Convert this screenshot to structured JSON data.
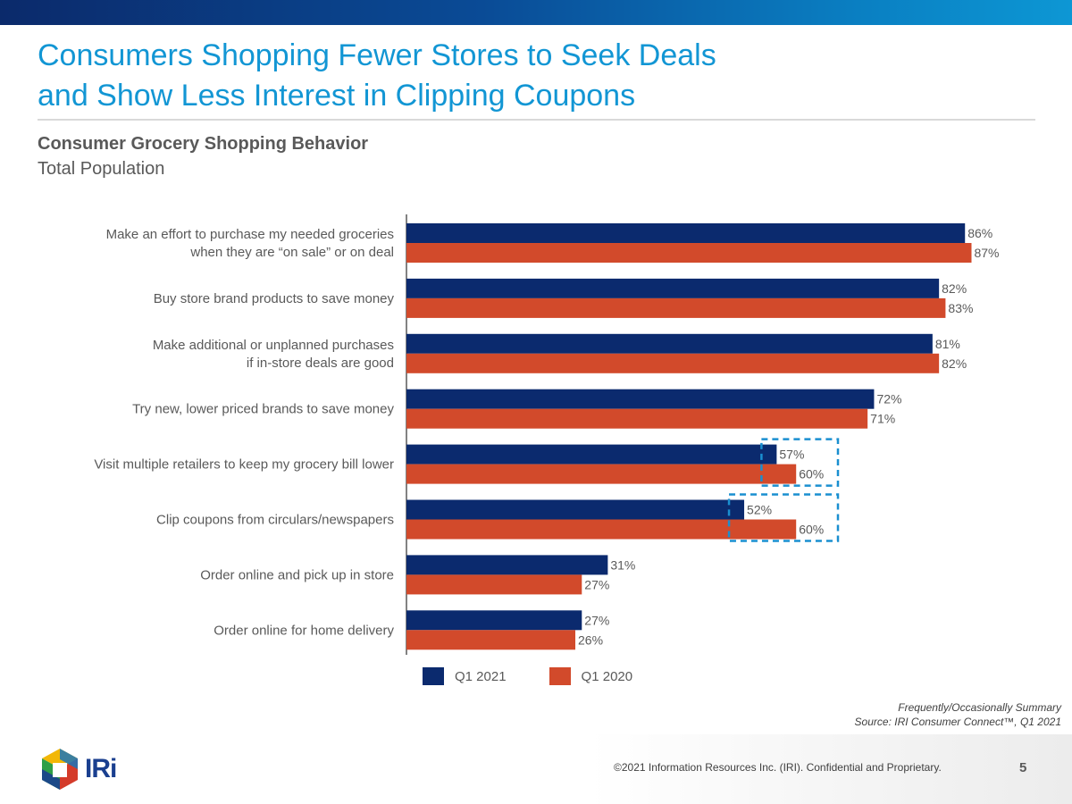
{
  "header": {
    "title_line1": "Consumers Shopping Fewer Stores to Seek Deals",
    "title_line2": "and Show Less Interest in Clipping Coupons",
    "subtitle": "Consumer Grocery Shopping Behavior",
    "subtitle2": "Total Population"
  },
  "colors": {
    "q1_2021": "#0b2a6e",
    "q1_2020": "#d24a2b",
    "title": "#1296d4",
    "highlight": "#1a8fd0"
  },
  "chart_data": {
    "type": "bar",
    "orientation": "horizontal",
    "categories": [
      [
        "Make an effort to purchase my needed groceries",
        "when they are “on sale” or on deal"
      ],
      [
        "Buy store brand products to save money"
      ],
      [
        "Make additional or unplanned purchases",
        "if in-store deals are good"
      ],
      [
        "Try new, lower priced brands to save money"
      ],
      [
        "Visit multiple retailers to keep my grocery bill lower"
      ],
      [
        "Clip coupons from circulars/newspapers"
      ],
      [
        "Order online and pick up in store"
      ],
      [
        "Order online for home delivery"
      ]
    ],
    "series": [
      {
        "name": "Q1 2021",
        "values": [
          86,
          82,
          81,
          72,
          57,
          52,
          31,
          27
        ]
      },
      {
        "name": "Q1 2020",
        "values": [
          87,
          83,
          82,
          71,
          60,
          60,
          27,
          26
        ]
      }
    ],
    "value_suffix": "%",
    "xlim": [
      0,
      100
    ],
    "highlighted_categories": [
      4,
      5
    ],
    "legend_position": "bottom"
  },
  "legend": {
    "items": [
      {
        "label": "Q1 2021"
      },
      {
        "label": "Q1 2020"
      }
    ]
  },
  "notes": {
    "line1": "Frequently/Occasionally Summary",
    "line2": "Source: IRI Consumer Connect™, Q1 2021"
  },
  "footer": {
    "logo_text": "IRi",
    "copyright": "©2021 Information Resources Inc. (IRI). Confidential and Proprietary.",
    "page_number": "5"
  }
}
